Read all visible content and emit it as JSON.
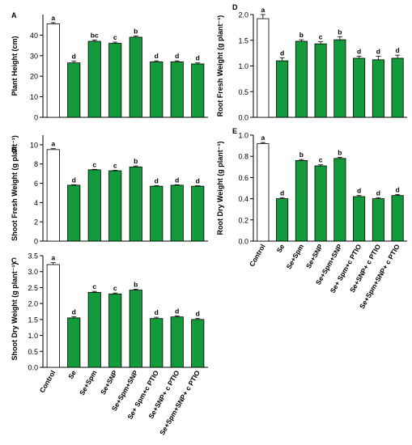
{
  "figure": {
    "colors": {
      "control_fill": "#ffffff",
      "treatment_fill": "#139a3a",
      "stroke": "#000000"
    },
    "categories": [
      "Control",
      "Se",
      "Se+Spm",
      "Se+SNP",
      "Se+Spm+SNP",
      "Se+ Spm+c PTIO",
      "Se+SNP+ c PTIO",
      "Se+Spm+SNP+ c PTIO"
    ]
  },
  "chart_data": [
    {
      "panel": "A",
      "type": "bar",
      "ylabel": "Plant Height (cm)",
      "ylim": [
        0,
        50
      ],
      "yticks": [
        0,
        10,
        20,
        30,
        40
      ],
      "categories": [
        "Control",
        "Se",
        "Se+Spm",
        "Se+SNP",
        "Se+Spm+SNP",
        "Se+ Spm+c PTIO",
        "Se+SNP+ c PTIO",
        "Se+Spm+SNP+ c PTIO"
      ],
      "values": [
        45.5,
        26.5,
        37.0,
        36.0,
        39.0,
        27.0,
        27.0,
        26.0
      ],
      "errors": [
        0.6,
        0.8,
        0.6,
        0.6,
        0.6,
        0.5,
        0.5,
        0.5
      ],
      "letters": [
        "a",
        "d",
        "bc",
        "c",
        "b",
        "d",
        "d",
        "d"
      ],
      "show_xticklabels": false
    },
    {
      "panel": "B",
      "type": "bar",
      "ylabel": "Shoot Fresh Weight (g plant⁻¹)",
      "ylim": [
        0,
        11
      ],
      "yticks": [
        0,
        2,
        4,
        6,
        8,
        10
      ],
      "categories": [
        "Control",
        "Se",
        "Se+Spm",
        "Se+SNP",
        "Se+Spm+SNP",
        "Se+ Spm+c PTIO",
        "Se+SNP+ c PTIO",
        "Se+Spm+SNP+ c PTIO"
      ],
      "values": [
        9.5,
        5.8,
        7.4,
        7.3,
        7.7,
        5.7,
        5.8,
        5.7
      ],
      "errors": [
        0.1,
        0.05,
        0.05,
        0.05,
        0.1,
        0.05,
        0.05,
        0.05
      ],
      "letters": [
        "a",
        "d",
        "c",
        "c",
        "b",
        "d",
        "d",
        "d"
      ],
      "show_xticklabels": false
    },
    {
      "panel": "C",
      "type": "bar",
      "ylabel": "Shoot Dry Weight (g plant⁻¹)",
      "ylim": [
        0,
        3.5
      ],
      "yticks": [
        0.0,
        0.5,
        1.0,
        1.5,
        2.0,
        2.5,
        3.0,
        3.5
      ],
      "categories": [
        "Control",
        "Se",
        "Se+Spm",
        "Se+SNP",
        "Se+Spm+SNP",
        "Se+ Spm+c PTIO",
        "Se+SNP+ c PTIO",
        "Se+Spm+SNP+ c PTIO"
      ],
      "values": [
        3.22,
        1.55,
        2.35,
        2.3,
        2.42,
        1.53,
        1.58,
        1.5
      ],
      "errors": [
        0.06,
        0.04,
        0.03,
        0.03,
        0.03,
        0.04,
        0.03,
        0.03
      ],
      "letters": [
        "a",
        "d",
        "c",
        "c",
        "b",
        "d",
        "d",
        "d"
      ],
      "show_xticklabels": true
    },
    {
      "panel": "D",
      "type": "bar",
      "ylabel": "Root Fresh Weight (g plant⁻¹)",
      "ylim": [
        0,
        2.0
      ],
      "yticks": [
        0.0,
        0.5,
        1.0,
        1.5,
        2.0
      ],
      "categories": [
        "Control",
        "Se",
        "Se+Spm",
        "Se+SNP",
        "Se+Spm+SNP",
        "Se+ Spm+c PTIO",
        "Se+SNP+ c PTIO",
        "Se+Spm+SNP+ c PTIO"
      ],
      "values": [
        1.92,
        1.1,
        1.48,
        1.43,
        1.51,
        1.15,
        1.12,
        1.15
      ],
      "errors": [
        0.08,
        0.06,
        0.03,
        0.04,
        0.06,
        0.04,
        0.07,
        0.06
      ],
      "letters": [
        "a",
        "d",
        "b",
        "c",
        "b",
        "d",
        "d",
        "d"
      ],
      "show_xticklabels": false
    },
    {
      "panel": "E",
      "type": "bar",
      "ylabel": "Root Dry Weight (g plant⁻¹)",
      "ylim": [
        0,
        1.0
      ],
      "yticks": [
        0.0,
        0.2,
        0.4,
        0.6,
        0.8,
        1.0
      ],
      "categories": [
        "Control",
        "Se",
        "Se+Spm",
        "Se+SNP",
        "Se+Spm+SNP",
        "Se+ Spm+c PTIO",
        "Se+SNP+ c PTIO",
        "Se+Spm+SNP+ c PTIO"
      ],
      "values": [
        0.92,
        0.4,
        0.76,
        0.71,
        0.78,
        0.42,
        0.4,
        0.43
      ],
      "errors": [
        0.01,
        0.01,
        0.01,
        0.01,
        0.01,
        0.01,
        0.01,
        0.01
      ],
      "letters": [
        "a",
        "d",
        "b",
        "c",
        "b",
        "d",
        "d",
        "d"
      ],
      "show_xticklabels": true
    }
  ]
}
